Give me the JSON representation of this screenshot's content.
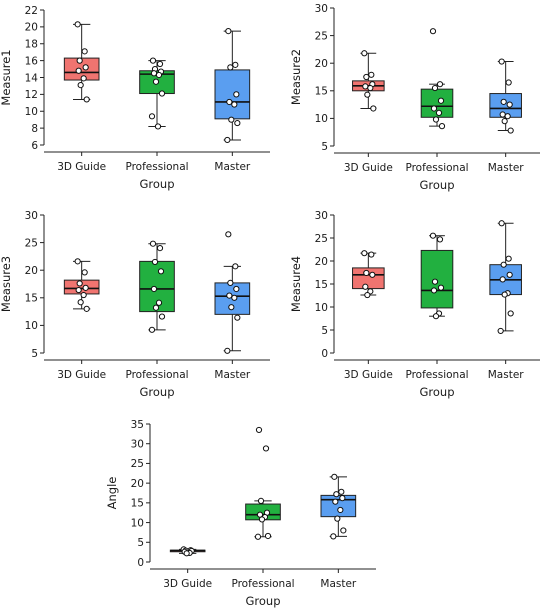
{
  "colors": {
    "3D Guide": "#f07470",
    "Professional": "#22b040",
    "Master": "#5a9ef0"
  },
  "chart_data": [
    {
      "type": "box",
      "xlabel": "Group",
      "ylabel": "Measure1",
      "categories": [
        "3D Guide",
        "Professional",
        "Master"
      ],
      "ylim": [
        6,
        22
      ],
      "yticks": [
        6,
        8,
        10,
        12,
        14,
        16,
        18,
        20,
        22
      ],
      "boxes": [
        {
          "q1": 13.7,
          "median": 14.6,
          "q3": 16.3,
          "min": 11.4,
          "max": 20.3
        },
        {
          "q1": 12.1,
          "median": 14.4,
          "q3": 14.8,
          "min": 8.2,
          "max": 16.0
        },
        {
          "q1": 9.1,
          "median": 11.1,
          "q3": 14.9,
          "min": 6.6,
          "max": 19.5
        }
      ],
      "points": [
        [
          20.3,
          17.1,
          16.0,
          15.2,
          14.8,
          13.9,
          13.1,
          11.4
        ],
        [
          16.0,
          15.6,
          15.0,
          14.7,
          14.5,
          14.3,
          13.5,
          12.1,
          9.4,
          8.2
        ],
        [
          19.5,
          15.5,
          15.2,
          12.0,
          11.1,
          10.8,
          9.0,
          8.6,
          6.6
        ]
      ]
    },
    {
      "type": "box",
      "xlabel": "Group",
      "ylabel": "Measure2",
      "categories": [
        "3D Guide",
        "Professional",
        "Master"
      ],
      "ylim": [
        5,
        30
      ],
      "yticks": [
        5,
        10,
        15,
        20,
        25,
        30
      ],
      "boxes": [
        {
          "q1": 15.0,
          "median": 15.9,
          "q3": 16.8,
          "min": 11.8,
          "max": 21.8
        },
        {
          "q1": 10.2,
          "median": 12.2,
          "q3": 15.3,
          "min": 8.6,
          "max": 16.2
        },
        {
          "q1": 10.2,
          "median": 11.8,
          "q3": 14.5,
          "min": 7.8,
          "max": 20.3
        }
      ],
      "points": [
        [
          21.8,
          17.9,
          17.5,
          16.2,
          15.8,
          15.5,
          14.3,
          11.8
        ],
        [
          25.8,
          16.2,
          15.5,
          13.2,
          11.8,
          11.0,
          9.8,
          8.6
        ],
        [
          20.3,
          16.5,
          13.0,
          12.5,
          10.7,
          10.4,
          9.5,
          7.8
        ]
      ]
    },
    {
      "type": "box",
      "xlabel": "Group",
      "ylabel": "Measure3",
      "categories": [
        "3D Guide",
        "Professional",
        "Master"
      ],
      "ylim": [
        5,
        30
      ],
      "yticks": [
        5,
        10,
        15,
        20,
        25,
        30
      ],
      "boxes": [
        {
          "q1": 15.7,
          "median": 16.7,
          "q3": 18.2,
          "min": 13.0,
          "max": 21.6
        },
        {
          "q1": 12.5,
          "median": 16.6,
          "q3": 21.6,
          "min": 9.2,
          "max": 24.8
        },
        {
          "q1": 12.0,
          "median": 15.3,
          "q3": 17.7,
          "min": 5.4,
          "max": 20.7
        }
      ],
      "points": [
        [
          21.6,
          19.6,
          17.6,
          16.8,
          16.4,
          15.5,
          14.2,
          13.0
        ],
        [
          24.8,
          24.0,
          21.5,
          19.8,
          16.6,
          14.1,
          13.2,
          11.6,
          9.2
        ],
        [
          26.5,
          20.7,
          17.7,
          16.6,
          15.4,
          15.0,
          13.3,
          11.4,
          5.4
        ]
      ]
    },
    {
      "type": "box",
      "xlabel": "Group",
      "ylabel": "Measure4",
      "categories": [
        "3D Guide",
        "Professional",
        "Master"
      ],
      "ylim": [
        0,
        30
      ],
      "yticks": [
        0,
        5,
        10,
        15,
        20,
        25,
        30
      ],
      "boxes": [
        {
          "q1": 14.0,
          "median": 17.0,
          "q3": 18.5,
          "min": 12.6,
          "max": 21.7
        },
        {
          "q1": 9.8,
          "median": 13.6,
          "q3": 22.3,
          "min": 8.0,
          "max": 25.5
        },
        {
          "q1": 12.7,
          "median": 15.9,
          "q3": 19.2,
          "min": 4.8,
          "max": 28.2
        }
      ],
      "points": [
        [
          21.7,
          21.4,
          17.4,
          17.0,
          14.4,
          13.4,
          12.6
        ],
        [
          25.5,
          24.7,
          15.5,
          14.2,
          13.6,
          8.6,
          8.0
        ],
        [
          28.2,
          20.5,
          19.2,
          17.0,
          16.0,
          13.0,
          12.7,
          8.6,
          4.8
        ]
      ]
    },
    {
      "type": "box",
      "xlabel": "Group",
      "ylabel": "Angle",
      "categories": [
        "3D Guide",
        "Professional",
        "Master"
      ],
      "ylim": [
        0,
        35
      ],
      "yticks": [
        0,
        5,
        10,
        15,
        20,
        25,
        30,
        35
      ],
      "boxes": [
        {
          "q1": 2.6,
          "median": 2.9,
          "q3": 3.0,
          "min": 2.2,
          "max": 3.2
        },
        {
          "q1": 10.7,
          "median": 12.0,
          "q3": 14.7,
          "min": 6.4,
          "max": 15.5
        },
        {
          "q1": 11.5,
          "median": 15.8,
          "q3": 16.9,
          "min": 6.5,
          "max": 21.6
        }
      ],
      "points": [
        [
          3.2,
          3.0,
          2.9,
          2.8,
          2.6,
          2.3,
          2.2
        ],
        [
          33.5,
          28.8,
          15.5,
          12.5,
          12.0,
          11.4,
          10.8,
          6.6,
          6.4
        ],
        [
          21.6,
          17.8,
          17.2,
          16.2,
          15.3,
          13.2,
          11.0,
          8.0,
          6.5
        ]
      ]
    }
  ]
}
